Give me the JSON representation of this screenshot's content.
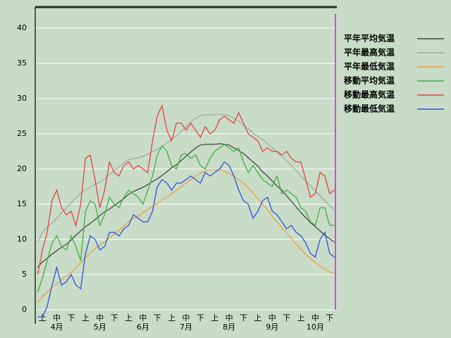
{
  "chart_data": {
    "type": "line",
    "categories": [
      null,
      "上",
      null,
      null,
      "中",
      null,
      null,
      "下",
      null,
      null,
      "上",
      null,
      null,
      "中",
      null,
      null,
      "下",
      null,
      null,
      "上",
      null,
      null,
      "中",
      null,
      null,
      "下",
      null,
      null,
      "上",
      null,
      null,
      "中",
      null,
      null,
      "下",
      null,
      null,
      "上",
      null,
      null,
      "中",
      null,
      null,
      "下",
      null,
      null,
      "上",
      null,
      null,
      "中",
      null,
      null,
      "下",
      null,
      null,
      "上",
      null,
      null,
      "中",
      null,
      null,
      "下",
      null
    ],
    "months": [
      "4月",
      "5月",
      "6月",
      "7月",
      "8月",
      "9月",
      "10月"
    ],
    "ylim": [
      -2,
      43
    ],
    "yticks": [
      0,
      5,
      10,
      15,
      20,
      25,
      30,
      35,
      40
    ],
    "grid": true,
    "legend": "right",
    "series": [
      {
        "name": "平年平均気温",
        "color": "#404a40",
        "values": [
          6,
          6.8,
          7.3,
          7.9,
          8.4,
          8.9,
          9.3,
          9.9,
          10.6,
          11.2,
          11.8,
          12.3,
          12.8,
          13.4,
          13.9,
          14.3,
          14.8,
          15.3,
          15.8,
          16.4,
          16.8,
          17.1,
          17.4,
          17.8,
          18.2,
          18.6,
          19.1,
          19.6,
          20.2,
          20.6,
          21.2,
          21.8,
          22.4,
          23,
          23.4,
          23.5,
          23.5,
          23.5,
          23.6,
          23.5,
          23.4,
          23,
          22.6,
          22.2,
          21.6,
          21,
          20.4,
          19.6,
          19,
          18.3,
          17.6,
          17,
          16.2,
          15.4,
          14.6,
          13.8,
          13.1,
          12.4,
          11.8,
          11.2,
          10.6,
          10.1,
          9.6
        ]
      },
      {
        "name": "平年最高気温",
        "color": "#a0aca0",
        "values": [
          9.5,
          11,
          11.8,
          12.3,
          13,
          13.8,
          14.5,
          15.2,
          15.9,
          16.6,
          17,
          17.4,
          17.8,
          18.2,
          18.6,
          19.2,
          19.8,
          20.3,
          20.9,
          21.3,
          21.5,
          21.6,
          21.8,
          22.1,
          22.5,
          22.8,
          23.2,
          23.7,
          24.2,
          24.7,
          25.3,
          26,
          26.7,
          27.2,
          27.6,
          27.7,
          27.7,
          27.7,
          27.8,
          27.7,
          27.6,
          27.2,
          26.8,
          26.2,
          25.7,
          25.1,
          24.6,
          24.2,
          23.6,
          23,
          22.4,
          21.8,
          21.2,
          20.5,
          19.8,
          19,
          18.3,
          17.6,
          16.9,
          16.2,
          15.5,
          14.8,
          14.2
        ]
      },
      {
        "name": "平年最低気温",
        "color": "#e8a040",
        "values": [
          1,
          1.9,
          2.5,
          3.2,
          3.7,
          4.3,
          4.8,
          5.3,
          6,
          6.7,
          7.4,
          8.1,
          8.7,
          9.2,
          9.7,
          10.2,
          10.8,
          11.3,
          11.9,
          12.5,
          13,
          13.3,
          13.8,
          14.2,
          14.7,
          15.1,
          15.6,
          16,
          16.5,
          17,
          17.5,
          18,
          18.5,
          19,
          19.4,
          19.7,
          19.9,
          19.9,
          19.9,
          19.7,
          19.4,
          19,
          18.5,
          18,
          17.3,
          16.6,
          15.8,
          15,
          14.2,
          13.3,
          12.5,
          11.7,
          10.9,
          10.1,
          9.3,
          8.6,
          7.9,
          7.3,
          6.7,
          6.2,
          5.8,
          5.4,
          5.1
        ]
      },
      {
        "name": "移動平均気温",
        "color": "#40b040",
        "values": [
          2.5,
          4.5,
          7,
          9.5,
          10.5,
          9,
          8.5,
          10.5,
          9,
          7,
          14,
          15.5,
          15,
          12,
          13.5,
          16,
          15,
          14.5,
          16,
          17,
          16.5,
          16,
          15,
          17,
          19,
          22,
          23.3,
          22.5,
          20.5,
          20,
          22,
          22.2,
          21.5,
          22,
          20.5,
          20,
          21.5,
          22.5,
          23,
          23.5,
          23,
          22.5,
          23,
          21,
          19.5,
          20.5,
          19.5,
          18.5,
          18,
          17.5,
          19,
          16.5,
          17,
          16.5,
          16,
          14.5,
          14,
          12.5,
          12,
          14.5,
          14.5,
          12,
          12
        ]
      },
      {
        "name": "移動最高気温",
        "color": "#e84040",
        "values": [
          5,
          8.5,
          11,
          15.5,
          17,
          14.5,
          13.5,
          14,
          12,
          15,
          21.5,
          22,
          18.5,
          14.5,
          17,
          21,
          19.5,
          19,
          20.5,
          21,
          20,
          20.5,
          20,
          19.5,
          24,
          27.5,
          29,
          25.5,
          24,
          26.5,
          26.5,
          25.5,
          26.5,
          25.5,
          24.5,
          26,
          25,
          25.5,
          27,
          27.5,
          27,
          26.5,
          28,
          26.5,
          25,
          24.5,
          24,
          22.5,
          23,
          22.5,
          22.5,
          22,
          22.5,
          21.5,
          21,
          21,
          18.5,
          16,
          16.5,
          19.5,
          19,
          16.5,
          17
        ]
      },
      {
        "name": "移動最低気温",
        "color": "#3050e0",
        "values": [
          -1,
          -1,
          0.5,
          3.5,
          6,
          3.5,
          4,
          5,
          3.5,
          3,
          8,
          10.5,
          10,
          8.5,
          9,
          11,
          11,
          10.5,
          11.5,
          12,
          13.5,
          13,
          12.5,
          12.5,
          14,
          17.5,
          18.5,
          18,
          17,
          18,
          18,
          18.5,
          19,
          18.5,
          18,
          19.5,
          19,
          19.5,
          20,
          21,
          20.5,
          19,
          17,
          15.5,
          15,
          13,
          14,
          15.5,
          16,
          14,
          13.5,
          12.5,
          11.5,
          12,
          11,
          10.5,
          9.5,
          8,
          7.5,
          10,
          11,
          8,
          7.5
        ]
      }
    ]
  }
}
